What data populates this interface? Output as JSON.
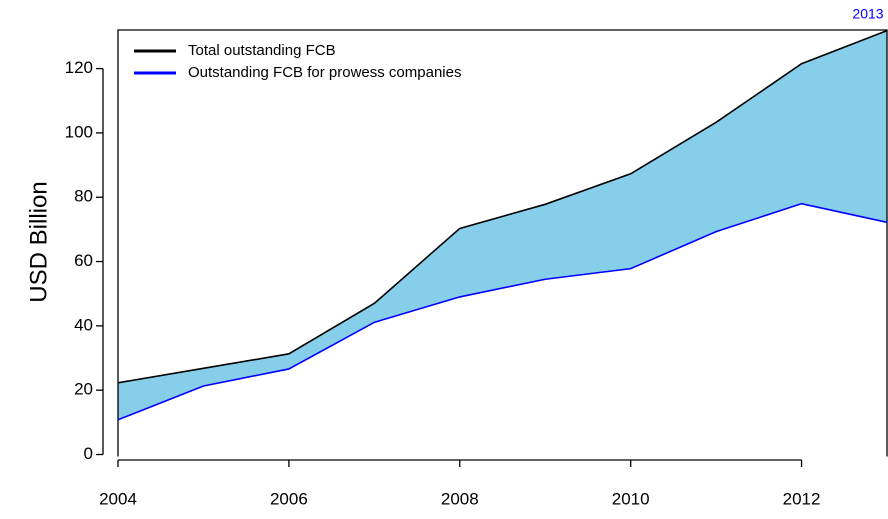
{
  "chart_data": {
    "type": "line",
    "ylabel": "USD Billion",
    "annotation": "2013",
    "annotation_color": "#0000ff",
    "x": [
      2004,
      2005,
      2006,
      2007,
      2008,
      2009,
      2010,
      2011,
      2012,
      2013
    ],
    "series": [
      {
        "name": "Total outstanding FCB",
        "color": "#000000",
        "values": [
          22.3,
          26.8,
          31.3,
          47,
          70.3,
          77.8,
          87.3,
          103.3,
          121.5,
          131.8
        ]
      },
      {
        "name": "Outstanding FCB for prowess companies",
        "color": "#0000ff",
        "values": [
          10.8,
          21.3,
          26.6,
          41.1,
          49,
          54.5,
          57.8,
          69.3,
          78,
          72.2
        ]
      }
    ],
    "fill_color": "#87ceeb",
    "xlim": [
      2004,
      2013
    ],
    "xticks": [
      2004,
      2006,
      2008,
      2010,
      2012
    ],
    "ylim": [
      0,
      132
    ],
    "yticks": [
      0,
      20,
      40,
      60,
      80,
      100,
      120
    ],
    "legend": "top-left"
  }
}
